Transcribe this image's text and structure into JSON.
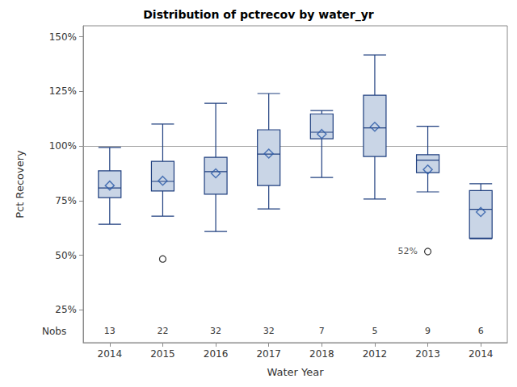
{
  "chart_data": {
    "type": "boxplot",
    "title": "Distribution of pctrecov by water_yr",
    "x_label": "Water Year",
    "y_label": "Pct Recovery",
    "categories": [
      "2014",
      "2015",
      "2016",
      "2017",
      "2018",
      "2012",
      "2013",
      "2014"
    ],
    "min": [
      64.2,
      67.9,
      60.9,
      71.2,
      85.6,
      75.7,
      79.0,
      57.5
    ],
    "q1": [
      76.4,
      79.4,
      77.9,
      81.9,
      103.3,
      95.2,
      87.8,
      57.8
    ],
    "median": [
      80.8,
      83.8,
      88.3,
      96.3,
      106.3,
      108.3,
      93.5,
      71.0
    ],
    "q3": [
      88.6,
      93.0,
      94.8,
      107.4,
      114.7,
      123.2,
      96.0,
      79.6
    ],
    "max": [
      99.3,
      110.0,
      119.5,
      124.0,
      116.2,
      141.7,
      109.0,
      82.7
    ],
    "mean": [
      81.9,
      84.1,
      87.5,
      96.5,
      105.5,
      108.8,
      89.2,
      69.8
    ],
    "outliers": [
      [],
      [
        {
          "value": 48.3
        }
      ],
      [],
      [],
      [],
      [],
      [
        {
          "value": 51.7,
          "label": "52%"
        }
      ],
      []
    ],
    "nobs_label": "Nobs",
    "nobs": [
      13,
      22,
      32,
      32,
      7,
      5,
      9,
      6
    ],
    "reference_line": 100,
    "color": "#c9d5e6",
    "marker": "diamond",
    "ylim": [
      10,
      155
    ],
    "yticks": [
      {
        "value": 25,
        "label": "25%"
      },
      {
        "value": 50,
        "label": "50%"
      },
      {
        "value": 75,
        "label": "75%"
      },
      {
        "value": 100,
        "label": "100%"
      },
      {
        "value": 125,
        "label": "125%"
      },
      {
        "value": 150,
        "label": "150%"
      }
    ],
    "grid": false
  }
}
